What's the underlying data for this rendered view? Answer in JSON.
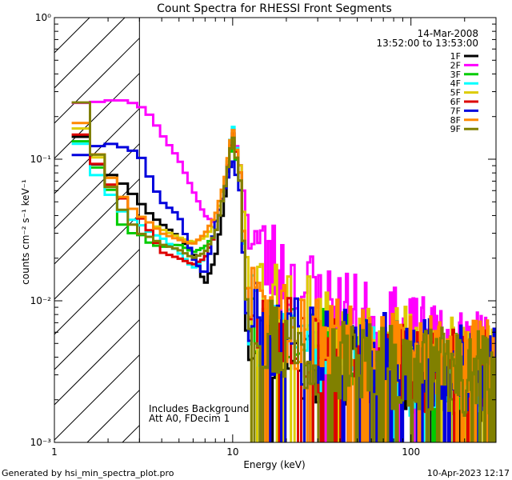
{
  "chart_data": {
    "type": "line",
    "title": "Count Spectra for RHESSI Front Segments",
    "xlabel": "Energy (keV)",
    "ylabel": "counts cm⁻² s⁻¹ keV⁻¹",
    "xscale": "log",
    "yscale": "log",
    "xlim": [
      1,
      300
    ],
    "ylim": [
      0.001,
      1
    ],
    "x_ticks": [
      {
        "value": 1,
        "label": "1"
      },
      {
        "value": 10,
        "label": "10"
      },
      {
        "value": 100,
        "label": "100"
      }
    ],
    "y_ticks": [
      {
        "value": 1,
        "label": "10⁰"
      },
      {
        "value": 0.1,
        "label": "10⁻¹"
      },
      {
        "value": 0.01,
        "label": "10⁻²"
      },
      {
        "value": 0.001,
        "label": "10⁻³"
      }
    ],
    "hatched_region": {
      "from": 1,
      "to": 3
    },
    "date": "14-Mar-2008",
    "time_range": "13:52:00 to 13:53:00",
    "annotations": [
      "Includes Background",
      "Att A0, FDecim 1"
    ],
    "series": [
      {
        "name": "1F",
        "color": "#000000",
        "offset": 0.0,
        "seed": 11,
        "points": [
          [
            1.3,
            0.18
          ],
          [
            1.6,
            0.1
          ],
          [
            2.0,
            0.08
          ],
          [
            2.5,
            0.065
          ],
          [
            3.0,
            0.05
          ],
          [
            3.5,
            0.04
          ],
          [
            4.0,
            0.035
          ],
          [
            5.0,
            0.028
          ],
          [
            6.0,
            0.022
          ],
          [
            7.0,
            0.013
          ],
          [
            8.0,
            0.02
          ],
          [
            9.0,
            0.05
          ],
          [
            10.0,
            0.16
          ],
          [
            11.0,
            0.08
          ],
          [
            12.0,
            0.006
          ],
          [
            15.0,
            0.005
          ],
          [
            20.0,
            0.004
          ],
          [
            30.0,
            0.0035
          ],
          [
            50.0,
            0.003
          ],
          [
            100.0,
            0.0028
          ],
          [
            200.0,
            0.0025
          ],
          [
            300.0,
            0.0025
          ]
        ]
      },
      {
        "name": "2F",
        "color": "#ff00ff",
        "offset": 0.0,
        "seed": 23,
        "points": [
          [
            1.3,
            0.25
          ],
          [
            1.6,
            0.25
          ],
          [
            2.0,
            0.26
          ],
          [
            2.5,
            0.26
          ],
          [
            3.0,
            0.24
          ],
          [
            3.5,
            0.2
          ],
          [
            4.0,
            0.15
          ],
          [
            5.0,
            0.1
          ],
          [
            6.0,
            0.06
          ],
          [
            7.0,
            0.04
          ],
          [
            8.0,
            0.035
          ],
          [
            9.0,
            0.06
          ],
          [
            10.0,
            0.17
          ],
          [
            11.0,
            0.09
          ],
          [
            12.0,
            0.04
          ],
          [
            15.0,
            0.02
          ],
          [
            20.0,
            0.015
          ],
          [
            30.0,
            0.01
          ],
          [
            50.0,
            0.007
          ],
          [
            100.0,
            0.005
          ],
          [
            200.0,
            0.004
          ],
          [
            300.0,
            0.004
          ]
        ]
      },
      {
        "name": "3F",
        "color": "#00cc00",
        "offset": 0.0,
        "seed": 37,
        "points": [
          [
            1.3,
            0.16
          ],
          [
            1.6,
            0.1
          ],
          [
            2.0,
            0.07
          ],
          [
            2.5,
            0.03
          ],
          [
            3.0,
            0.03
          ],
          [
            3.5,
            0.025
          ],
          [
            4.0,
            0.024
          ],
          [
            5.0,
            0.025
          ],
          [
            6.0,
            0.022
          ],
          [
            7.0,
            0.024
          ],
          [
            8.0,
            0.03
          ],
          [
            9.0,
            0.06
          ],
          [
            10.0,
            0.14
          ],
          [
            11.0,
            0.07
          ],
          [
            12.0,
            0.01
          ],
          [
            15.0,
            0.006
          ],
          [
            20.0,
            0.005
          ],
          [
            30.0,
            0.004
          ],
          [
            50.0,
            0.0035
          ],
          [
            100.0,
            0.003
          ],
          [
            200.0,
            0.0028
          ],
          [
            300.0,
            0.0028
          ]
        ]
      },
      {
        "name": "4F",
        "color": "#00ffff",
        "offset": 0.0,
        "seed": 41,
        "points": [
          [
            1.3,
            0.16
          ],
          [
            1.6,
            0.09
          ],
          [
            2.0,
            0.06
          ],
          [
            2.5,
            0.04
          ],
          [
            3.0,
            0.035
          ],
          [
            3.5,
            0.03
          ],
          [
            4.0,
            0.028
          ],
          [
            5.0,
            0.022
          ],
          [
            6.0,
            0.017
          ],
          [
            7.0,
            0.02
          ],
          [
            8.0,
            0.03
          ],
          [
            9.0,
            0.06
          ],
          [
            10.0,
            0.18
          ],
          [
            11.0,
            0.08
          ],
          [
            12.0,
            0.008
          ],
          [
            15.0,
            0.005
          ],
          [
            20.0,
            0.004
          ],
          [
            30.0,
            0.0035
          ],
          [
            50.0,
            0.003
          ],
          [
            100.0,
            0.0028
          ],
          [
            200.0,
            0.0025
          ],
          [
            300.0,
            0.0025
          ]
        ]
      },
      {
        "name": "5F",
        "color": "#ddcc00",
        "offset": 0.0,
        "seed": 53,
        "points": [
          [
            1.3,
            0.2
          ],
          [
            1.6,
            0.12
          ],
          [
            2.0,
            0.08
          ],
          [
            2.5,
            0.05
          ],
          [
            3.0,
            0.04
          ],
          [
            3.5,
            0.035
          ],
          [
            4.0,
            0.032
          ],
          [
            5.0,
            0.028
          ],
          [
            6.0,
            0.026
          ],
          [
            7.0,
            0.028
          ],
          [
            8.0,
            0.035
          ],
          [
            9.0,
            0.07
          ],
          [
            10.0,
            0.15
          ],
          [
            11.0,
            0.09
          ],
          [
            12.0,
            0.02
          ],
          [
            15.0,
            0.012
          ],
          [
            20.0,
            0.009
          ],
          [
            30.0,
            0.007
          ],
          [
            50.0,
            0.005
          ],
          [
            100.0,
            0.004
          ],
          [
            200.0,
            0.0035
          ],
          [
            300.0,
            0.0035
          ]
        ]
      },
      {
        "name": "6F",
        "color": "#dd0000",
        "offset": 0.0,
        "seed": 67,
        "points": [
          [
            1.3,
            0.18
          ],
          [
            1.6,
            0.11
          ],
          [
            2.0,
            0.07
          ],
          [
            2.5,
            0.05
          ],
          [
            3.0,
            0.04
          ],
          [
            3.5,
            0.03
          ],
          [
            4.0,
            0.022
          ],
          [
            5.0,
            0.02
          ],
          [
            6.0,
            0.018
          ],
          [
            7.0,
            0.02
          ],
          [
            8.0,
            0.03
          ],
          [
            9.0,
            0.06
          ],
          [
            10.0,
            0.16
          ],
          [
            11.0,
            0.08
          ],
          [
            12.0,
            0.012
          ],
          [
            15.0,
            0.007
          ],
          [
            20.0,
            0.005
          ],
          [
            30.0,
            0.004
          ],
          [
            50.0,
            0.0035
          ],
          [
            100.0,
            0.003
          ],
          [
            200.0,
            0.0028
          ],
          [
            300.0,
            0.0028
          ]
        ]
      },
      {
        "name": "7F",
        "color": "#0000dd",
        "offset": 0.0,
        "seed": 79,
        "points": [
          [
            1.3,
            0.1
          ],
          [
            1.6,
            0.12
          ],
          [
            2.0,
            0.13
          ],
          [
            2.5,
            0.12
          ],
          [
            3.0,
            0.11
          ],
          [
            3.5,
            0.07
          ],
          [
            4.0,
            0.05
          ],
          [
            5.0,
            0.04
          ],
          [
            6.0,
            0.02
          ],
          [
            7.0,
            0.015
          ],
          [
            8.0,
            0.035
          ],
          [
            9.0,
            0.06
          ],
          [
            10.0,
            0.1
          ],
          [
            11.0,
            0.06
          ],
          [
            12.0,
            0.008
          ],
          [
            15.0,
            0.006
          ],
          [
            20.0,
            0.005
          ],
          [
            30.0,
            0.0045
          ],
          [
            50.0,
            0.004
          ],
          [
            100.0,
            0.0035
          ],
          [
            200.0,
            0.003
          ],
          [
            300.0,
            0.003
          ]
        ]
      },
      {
        "name": "8F",
        "color": "#ff8800",
        "offset": 0.0,
        "seed": 83,
        "points": [
          [
            1.3,
            0.22
          ],
          [
            1.6,
            0.13
          ],
          [
            2.0,
            0.08
          ],
          [
            2.5,
            0.05
          ],
          [
            3.0,
            0.04
          ],
          [
            3.5,
            0.035
          ],
          [
            4.0,
            0.03
          ],
          [
            5.0,
            0.027
          ],
          [
            6.0,
            0.025
          ],
          [
            7.0,
            0.03
          ],
          [
            8.0,
            0.04
          ],
          [
            9.0,
            0.07
          ],
          [
            10.0,
            0.17
          ],
          [
            11.0,
            0.08
          ],
          [
            12.0,
            0.012
          ],
          [
            15.0,
            0.008
          ],
          [
            20.0,
            0.006
          ],
          [
            30.0,
            0.005
          ],
          [
            50.0,
            0.0045
          ],
          [
            100.0,
            0.004
          ],
          [
            200.0,
            0.0035
          ],
          [
            300.0,
            0.0035
          ]
        ]
      },
      {
        "name": "9F",
        "color": "#808000",
        "offset": 0.0,
        "seed": 97,
        "points": [
          [
            1.3,
            0.36
          ],
          [
            1.6,
            0.14
          ],
          [
            2.0,
            0.07
          ],
          [
            2.5,
            0.04
          ],
          [
            3.0,
            0.03
          ],
          [
            3.5,
            0.028
          ],
          [
            4.0,
            0.025
          ],
          [
            5.0,
            0.023
          ],
          [
            6.0,
            0.02
          ],
          [
            7.0,
            0.022
          ],
          [
            8.0,
            0.03
          ],
          [
            9.0,
            0.06
          ],
          [
            10.0,
            0.15
          ],
          [
            11.0,
            0.07
          ],
          [
            12.0,
            0.01
          ],
          [
            15.0,
            0.006
          ],
          [
            20.0,
            0.005
          ],
          [
            30.0,
            0.004
          ],
          [
            50.0,
            0.0035
          ],
          [
            100.0,
            0.003
          ],
          [
            200.0,
            0.0028
          ],
          [
            300.0,
            0.0028
          ]
        ]
      }
    ]
  },
  "footer": {
    "left": "Generated by hsi_min_spectra_plot.pro",
    "right": "10-Apr-2023 12:17"
  }
}
